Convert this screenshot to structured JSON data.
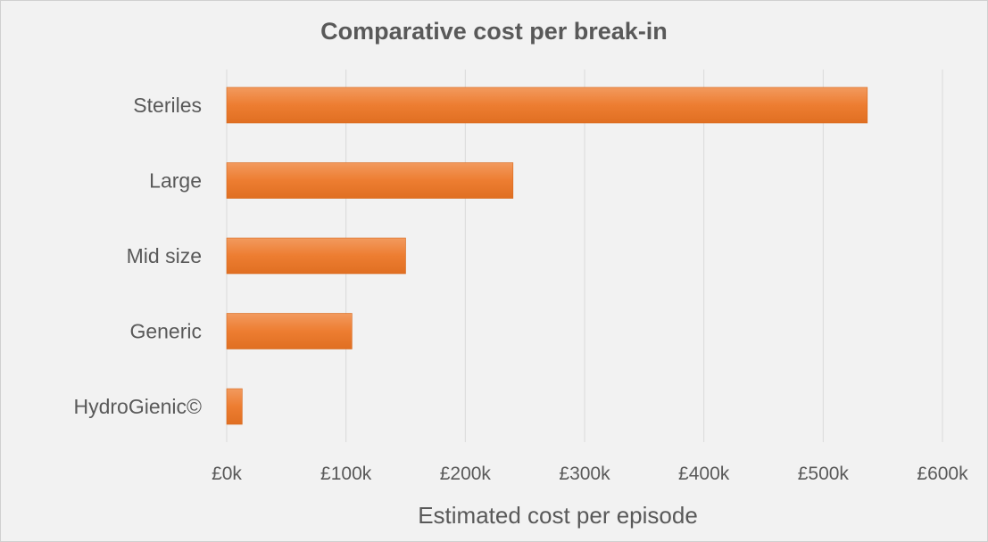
{
  "chart_data": {
    "type": "bar",
    "orientation": "horizontal",
    "title": "Comparative cost per break-in",
    "xlabel": "Estimated cost per episode",
    "ylabel": "",
    "categories": [
      "Steriles",
      "Large",
      "Mid size",
      "Generic",
      "HydroGienic©"
    ],
    "values": [
      537000,
      240000,
      150000,
      105000,
      13000
    ],
    "xlim": [
      0,
      600000
    ],
    "ticks": [
      0,
      100000,
      200000,
      300000,
      400000,
      500000,
      600000
    ],
    "tick_labels": [
      "£0k",
      "£100k",
      "£200k",
      "£300k",
      "£400k",
      "£500k",
      "£600k"
    ],
    "grid": true,
    "bar_color": "#ed7d31",
    "grid_color": "#d9d9d9"
  }
}
